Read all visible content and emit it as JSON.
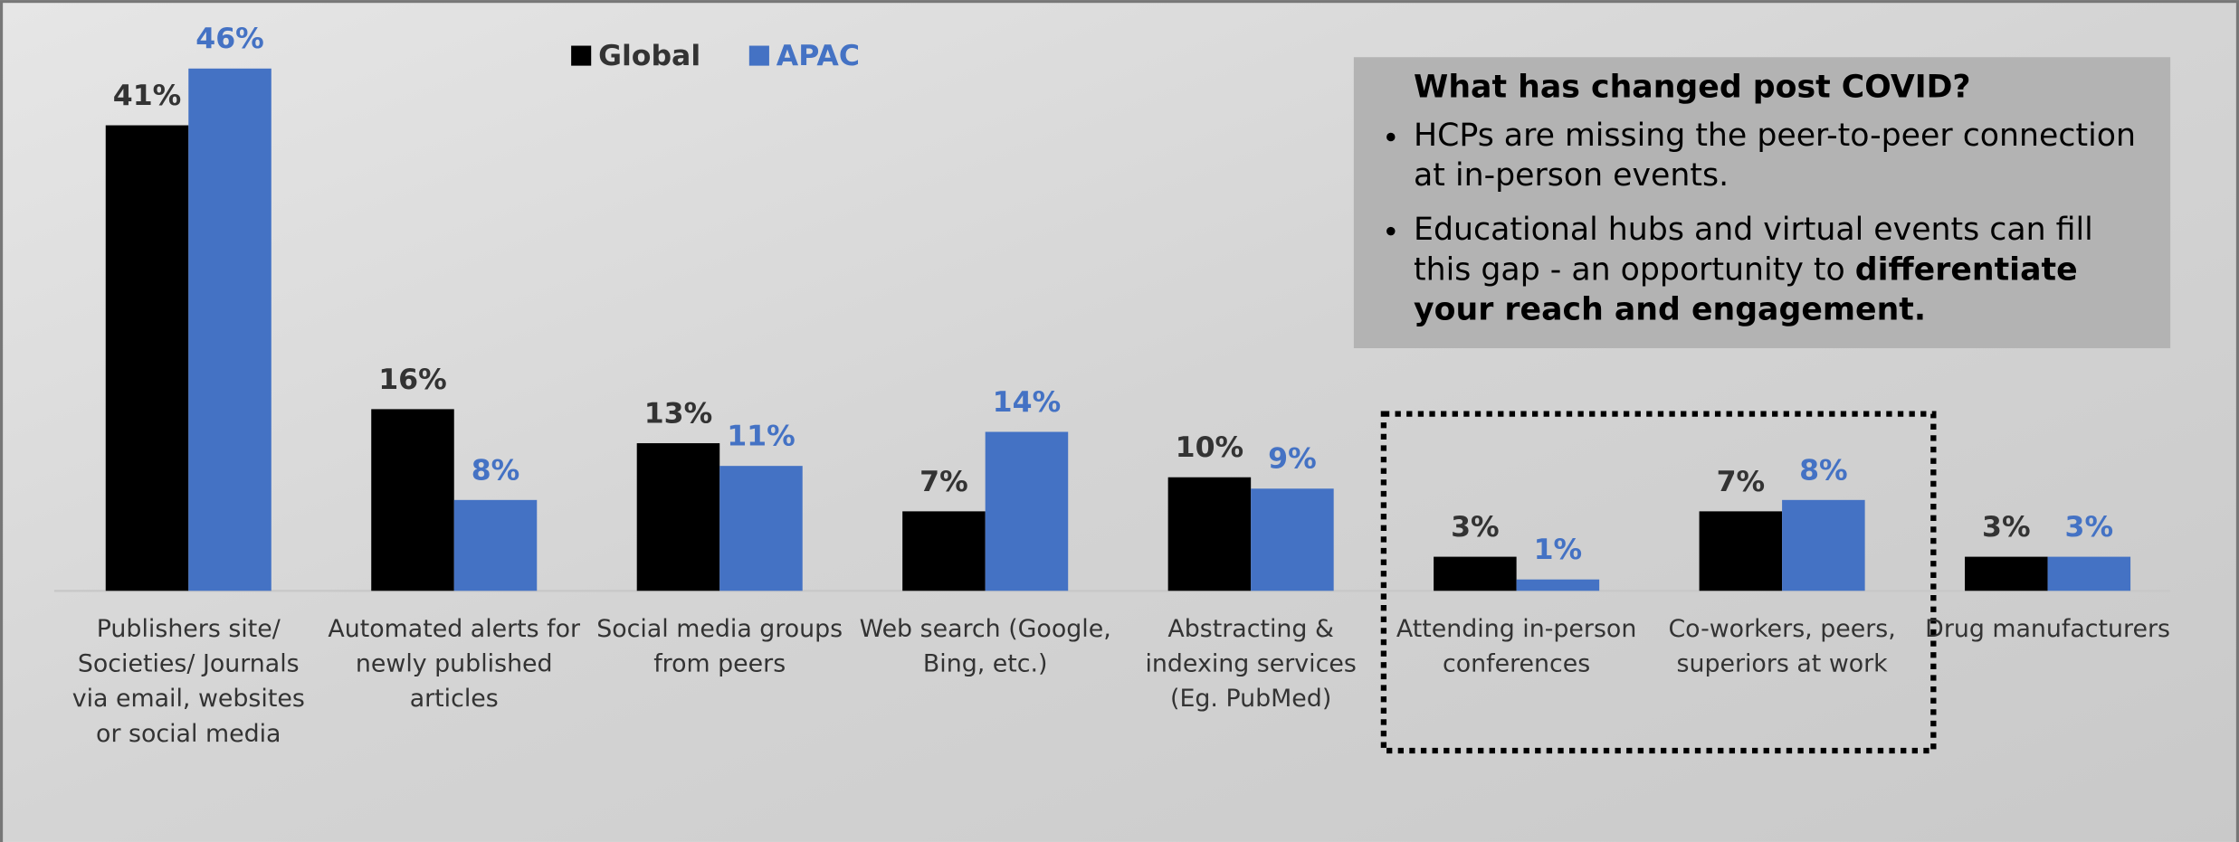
{
  "chart_data": {
    "type": "bar",
    "categories": [
      "Publishers site/ Societies/ Journals via email, websites or social media",
      "Automated alerts for newly published articles",
      "Social media groups from peers",
      "Web search (Google, Bing, etc.)",
      "Abstracting & indexing services (Eg. PubMed)",
      "Attending in-person conferences",
      "Co-workers, peers, superiors at work",
      "Drug manufacturers"
    ],
    "series": [
      {
        "name": "Global",
        "color": "#000000",
        "label_color": "#333333",
        "values": [
          41,
          16,
          13,
          7,
          10,
          3,
          7,
          3
        ],
        "value_labels": [
          "41%",
          "16%",
          "13%",
          "7%",
          "10%",
          "3%",
          "7%",
          "3%"
        ]
      },
      {
        "name": "APAC",
        "color": "#4472c4",
        "label_color": "#4472c4",
        "values": [
          46,
          8,
          11,
          14,
          9,
          1,
          8,
          3
        ],
        "value_labels": [
          "46%",
          "8%",
          "11%",
          "14%",
          "9%",
          "1%",
          "8%",
          "3%"
        ]
      }
    ],
    "legend": "top",
    "annotation": {
      "title": "What has changed post COVID?",
      "bullets": [
        [
          {
            "text": "HCPs are missing the peer-to-peer connection at in-person events.",
            "bold": false
          }
        ],
        [
          {
            "text": "Educational hubs and virtual events can fill this gap - an opportunity to ",
            "bold": false
          },
          {
            "text": "differentiate your reach and engagement.",
            "bold": true
          }
        ]
      ]
    }
  }
}
